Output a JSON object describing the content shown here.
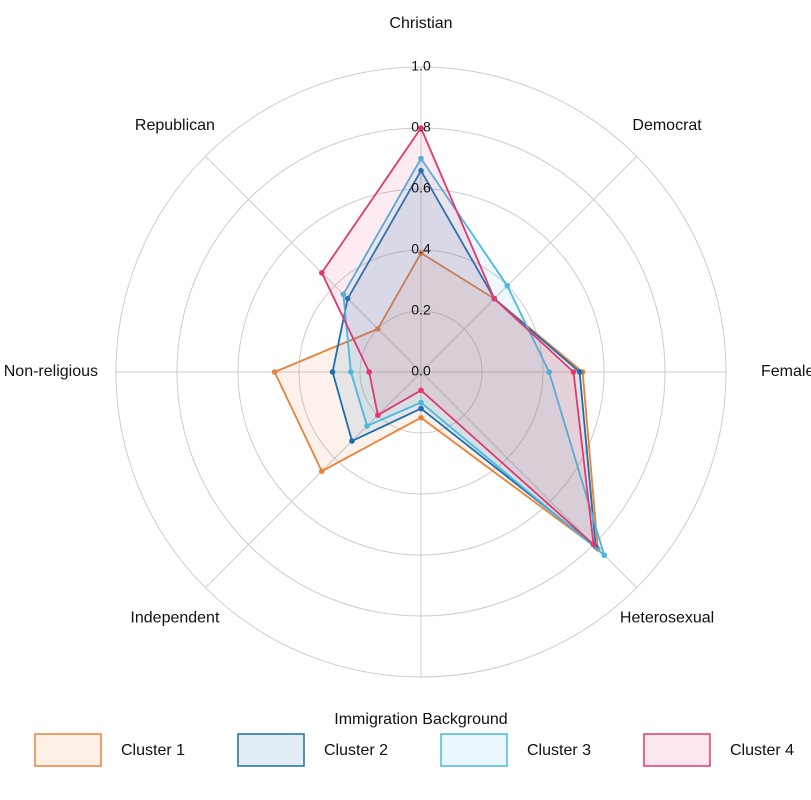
{
  "chart_data": {
    "type": "radar",
    "categories": [
      "Christian",
      "Democrat",
      "Female",
      "Heterosexual",
      "Immigration Background",
      "Independent",
      "Non-religious",
      "Republican"
    ],
    "series": [
      {
        "name": "Cluster 1",
        "color": "#e8823a",
        "values": [
          0.39,
          0.34,
          0.53,
          0.82,
          0.15,
          0.46,
          0.48,
          0.2
        ]
      },
      {
        "name": "Cluster 2",
        "color": "#1a6faf",
        "values": [
          0.66,
          0.34,
          0.52,
          0.81,
          0.12,
          0.32,
          0.29,
          0.34
        ]
      },
      {
        "name": "Cluster 3",
        "color": "#4ab8e0",
        "values": [
          0.7,
          0.4,
          0.42,
          0.85,
          0.1,
          0.25,
          0.23,
          0.36
        ]
      },
      {
        "name": "Cluster 4",
        "color": "#e0386f",
        "values": [
          0.8,
          0.34,
          0.5,
          0.8,
          0.06,
          0.2,
          0.17,
          0.46
        ]
      }
    ],
    "ylim": [
      0,
      1
    ],
    "yticks": [
      {
        "value": 0,
        "label": "0.0"
      },
      0.2,
      0.4,
      0.6,
      0.8,
      {
        "value": 1,
        "label": "1.0"
      }
    ]
  }
}
